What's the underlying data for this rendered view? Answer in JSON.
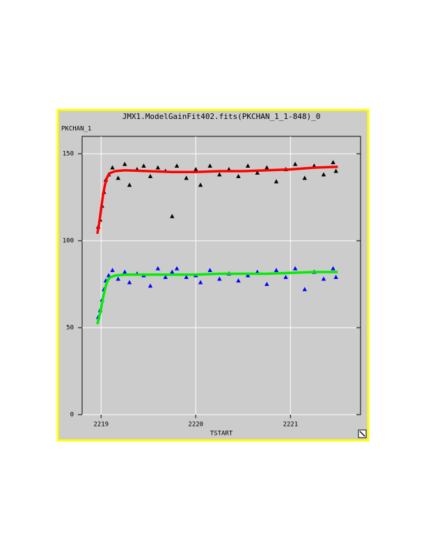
{
  "chart_data": {
    "type": "scatter",
    "title": "JMX1.ModelGainFit402.fits(PKCHAN_1_1-848)_0",
    "y_label": "PKCHAN_1",
    "x_label": "TSTART",
    "xlim": [
      2218.8,
      2221.74
    ],
    "ylim": [
      0,
      160
    ],
    "xticks": [
      2219,
      2220,
      2221
    ],
    "yticks": [
      0,
      50,
      100,
      150
    ],
    "grid": true,
    "series": [
      {
        "color": "#000000",
        "marker": "triangle",
        "x": [
          2218.97,
          2218.99,
          2219.01,
          2219.03,
          2219.05,
          2219.08,
          2219.12,
          2219.18,
          2219.25,
          2219.3,
          2219.38,
          2219.45,
          2219.52,
          2219.6,
          2219.68,
          2219.75,
          2219.8,
          2219.9,
          2220.0,
          2220.05,
          2220.15,
          2220.25,
          2220.35,
          2220.45,
          2220.55,
          2220.65,
          2220.75,
          2220.85,
          2220.95,
          2221.05,
          2221.15,
          2221.25,
          2221.35,
          2221.45,
          2221.48
        ],
        "values": [
          108,
          112,
          120,
          128,
          135,
          138,
          142,
          136,
          144,
          132,
          141,
          143,
          137,
          142,
          140,
          114,
          143,
          136,
          141,
          132,
          143,
          138,
          141,
          137,
          143,
          139,
          142,
          134,
          141,
          144,
          136,
          143,
          138,
          145,
          140
        ]
      },
      {
        "color": "#0000ff",
        "marker": "triangle",
        "x": [
          2218.97,
          2218.99,
          2219.01,
          2219.03,
          2219.05,
          2219.08,
          2219.12,
          2219.18,
          2219.25,
          2219.3,
          2219.38,
          2219.45,
          2219.52,
          2219.6,
          2219.68,
          2219.75,
          2219.8,
          2219.9,
          2220.0,
          2220.05,
          2220.15,
          2220.25,
          2220.35,
          2220.45,
          2220.55,
          2220.65,
          2220.75,
          2220.85,
          2220.95,
          2221.05,
          2221.15,
          2221.25,
          2221.35,
          2221.45,
          2221.48
        ],
        "values": [
          56,
          60,
          66,
          72,
          77,
          80,
          83,
          78,
          82,
          76,
          81,
          80,
          74,
          84,
          79,
          82,
          84,
          79,
          80,
          76,
          83,
          78,
          81,
          77,
          80,
          82,
          75,
          83,
          79,
          84,
          72,
          82,
          78,
          84,
          79
        ]
      },
      {
        "color": "#ff0000",
        "marker": "line",
        "x": [
          2218.96,
          2218.98,
          2219.0,
          2219.02,
          2219.04,
          2219.06,
          2219.08,
          2219.1,
          2219.15,
          2219.25,
          2219.5,
          2219.75,
          2220.0,
          2220.25,
          2220.5,
          2220.75,
          2221.0,
          2221.25,
          2221.5
        ],
        "values": [
          104,
          110,
          118,
          126,
          132,
          136,
          138,
          139,
          140,
          140.5,
          140,
          139.5,
          139.5,
          140,
          140,
          140.5,
          141,
          142,
          142.5
        ]
      },
      {
        "color": "#00ee00",
        "marker": "line",
        "x": [
          2218.96,
          2218.98,
          2219.0,
          2219.02,
          2219.04,
          2219.06,
          2219.08,
          2219.1,
          2219.15,
          2219.25,
          2219.5,
          2219.75,
          2220.0,
          2220.25,
          2220.5,
          2220.75,
          2221.0,
          2221.25,
          2221.5
        ],
        "values": [
          52,
          56,
          61,
          67,
          72,
          76,
          78,
          79,
          80,
          80.5,
          80.5,
          80.5,
          80.5,
          81,
          81,
          81,
          81.5,
          82,
          82
        ]
      }
    ]
  }
}
